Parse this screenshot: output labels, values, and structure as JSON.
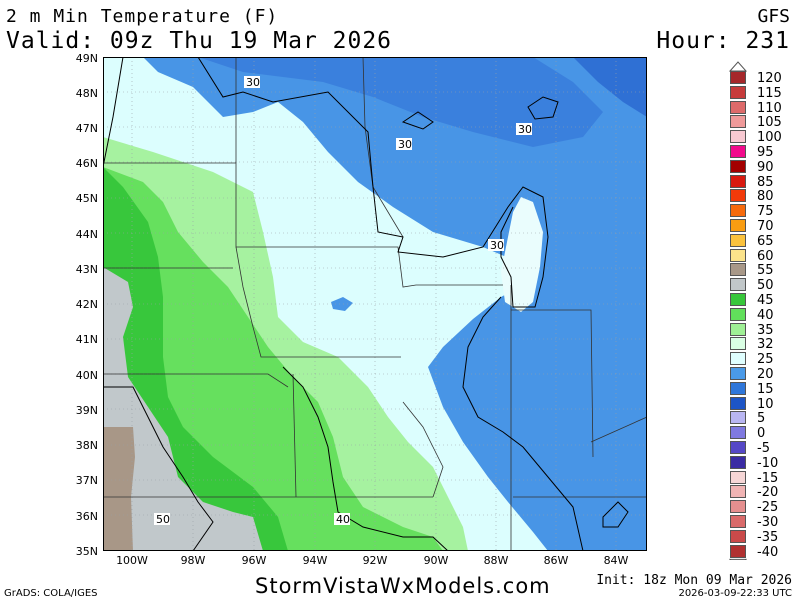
{
  "header": {
    "title": "2 m Min Temperature (F)",
    "valid": "Valid: 09z Thu 19 Mar 2026",
    "model": "GFS",
    "hour": "Hour: 231"
  },
  "map": {
    "lat_labels": [
      "49N",
      "48N",
      "47N",
      "46N",
      "45N",
      "44N",
      "43N",
      "42N",
      "41N",
      "40N",
      "39N",
      "38N",
      "37N",
      "36N",
      "35N"
    ],
    "lon_labels": [
      "100W",
      "98W",
      "96W",
      "94W",
      "92W",
      "90W",
      "88W",
      "86W",
      "84W"
    ],
    "contour_labels": [
      "30",
      "30",
      "30",
      "30",
      "50",
      "40"
    ]
  },
  "legend": {
    "items": [
      {
        "label": "120",
        "color": "#a5272a"
      },
      {
        "label": "115",
        "color": "#c63b3b"
      },
      {
        "label": "110",
        "color": "#dd6a6a"
      },
      {
        "label": "105",
        "color": "#ef9a9a"
      },
      {
        "label": "100",
        "color": "#f8c9d2"
      },
      {
        "label": "95",
        "color": "#f20a8c"
      },
      {
        "label": "90",
        "color": "#a30000"
      },
      {
        "label": "85",
        "color": "#d81a10"
      },
      {
        "label": "80",
        "color": "#f23a0a"
      },
      {
        "label": "75",
        "color": "#f66a0c"
      },
      {
        "label": "70",
        "color": "#f99d12"
      },
      {
        "label": "65",
        "color": "#fbc23d"
      },
      {
        "label": "60",
        "color": "#fbe38b"
      },
      {
        "label": "55",
        "color": "#a89888"
      },
      {
        "label": "50",
        "color": "#c1c7c9"
      },
      {
        "label": "45",
        "color": "#37c63a"
      },
      {
        "label": "40",
        "color": "#61df5b"
      },
      {
        "label": "35",
        "color": "#9ff095"
      },
      {
        "label": "32",
        "color": "#daffe4"
      },
      {
        "label": "25",
        "color": "#e0ffff"
      },
      {
        "label": "20",
        "color": "#4a9ae8"
      },
      {
        "label": "15",
        "color": "#2f77da"
      },
      {
        "label": "10",
        "color": "#1d55c6"
      },
      {
        "label": "5",
        "color": "#b9b6f2"
      },
      {
        "label": "0",
        "color": "#7f79e0"
      },
      {
        "label": "-5",
        "color": "#5648c6"
      },
      {
        "label": "-10",
        "color": "#3a2ba3"
      },
      {
        "label": "-15",
        "color": "#f6d6d6"
      },
      {
        "label": "-20",
        "color": "#f0b4b4"
      },
      {
        "label": "-25",
        "color": "#e58f8f"
      },
      {
        "label": "-30",
        "color": "#d96a6a"
      },
      {
        "label": "-35",
        "color": "#c94a4a"
      },
      {
        "label": "-40",
        "color": "#b03030"
      }
    ]
  },
  "footer": {
    "site": "StormVistaWxModels.com",
    "init": "Init: 18z Mon 09 Mar 2026",
    "grads": "GrADS: COLA/IGES",
    "stamp": "2026-03-09-22:33 UTC"
  }
}
